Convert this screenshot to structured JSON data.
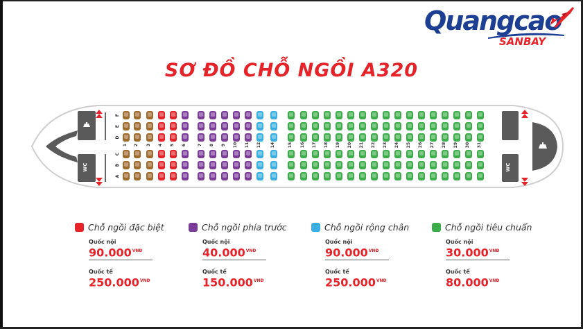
{
  "logo": {
    "main": "Quangcao",
    "sub": "SANBAY"
  },
  "title": "SƠ ĐỒ CHỖ NGỒI A320",
  "seatmap": {
    "row_numbers": [
      "1",
      "2",
      "3",
      "4",
      "5",
      "6",
      "7",
      "8",
      "9",
      "10",
      "11",
      "12",
      "14",
      "15",
      "16",
      "17",
      "18",
      "19",
      "20",
      "21",
      "22",
      "23",
      "24",
      "25",
      "26",
      "27",
      "28",
      "29",
      "30",
      "31"
    ],
    "upper_letters": [
      "F",
      "E",
      "D"
    ],
    "lower_letters": [
      "C",
      "B",
      "A"
    ],
    "wc_label": "WC",
    "colors": {
      "premium": "#a0692e",
      "special": "#e52329",
      "front": "#7b3c9a",
      "legroom": "#3aaee0",
      "standard": "#3cae49",
      "gray": "#5a5a5a"
    }
  },
  "legend": [
    {
      "label": "Chỗ ngồi đặc biệt",
      "color": "#e52329",
      "domestic_label": "Quốc nội",
      "domestic_price": "90.000",
      "international_label": "Quốc tế",
      "international_price": "250.000",
      "currency": "VNĐ"
    },
    {
      "label": "Chỗ ngồi phía trước",
      "color": "#7b3c9a",
      "domestic_label": "Quốc nội",
      "domestic_price": "40.000",
      "international_label": "Quốc tế",
      "international_price": "150.000",
      "currency": "VNĐ"
    },
    {
      "label": "Chỗ ngồi rộng chân",
      "color": "#3aaee0",
      "domestic_label": "Quốc nội",
      "domestic_price": "90.000",
      "international_label": "Quốc tế",
      "international_price": "250.000",
      "currency": "VNĐ"
    },
    {
      "label": "Chỗ ngồi tiêu chuẩn",
      "color": "#3cae49",
      "domestic_label": "Quốc nội",
      "domestic_price": "30.000",
      "international_label": "Quốc tế",
      "international_price": "80.000",
      "currency": "VNĐ"
    }
  ]
}
